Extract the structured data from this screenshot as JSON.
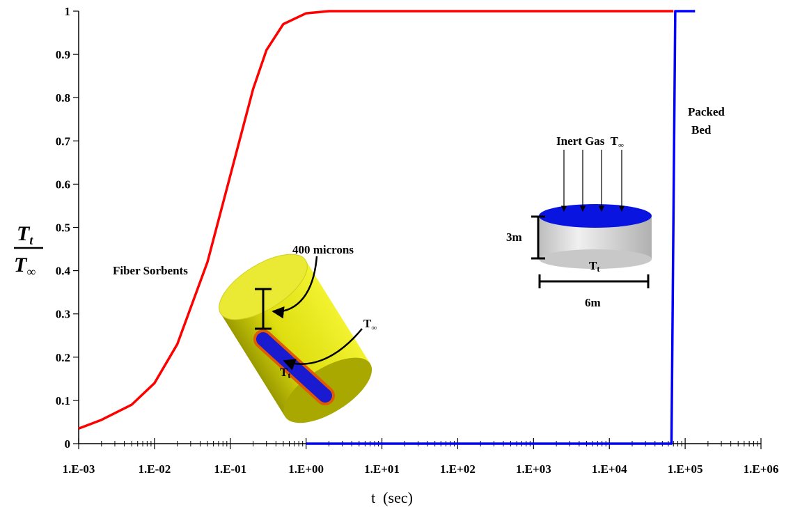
{
  "chart_data": {
    "type": "line",
    "xlabel": "t  (sec)",
    "ylabel": {
      "numerator": {
        "base": "T",
        "sub": "t"
      },
      "denominator": {
        "base": "T",
        "sub": "∞"
      }
    },
    "xscale": "log",
    "xlim": [
      0.001,
      1000000
    ],
    "xticks": [
      {
        "value": 0.001,
        "label": "1.E-03"
      },
      {
        "value": 0.01,
        "label": "1.E-02"
      },
      {
        "value": 0.1,
        "label": "1.E-01"
      },
      {
        "value": 1,
        "label": "1.E+00"
      },
      {
        "value": 10,
        "label": "1.E+01"
      },
      {
        "value": 100,
        "label": "1.E+02"
      },
      {
        "value": 1000,
        "label": "1.E+03"
      },
      {
        "value": 10000,
        "label": "1.E+04"
      },
      {
        "value": 100000,
        "label": "1.E+05"
      },
      {
        "value": 1000000,
        "label": "1.E+06"
      }
    ],
    "ylim": [
      0,
      1
    ],
    "yticks": [
      0,
      0.1,
      0.2,
      0.3,
      0.4,
      0.5,
      0.6,
      0.7,
      0.8,
      0.9,
      1
    ],
    "series": [
      {
        "color": "#ff0000",
        "x": [
          0.001,
          0.002,
          0.005,
          0.01,
          0.02,
          0.05,
          0.1,
          0.2,
          0.3,
          0.5,
          1,
          2,
          10,
          100,
          1000,
          10000,
          70000
        ],
        "values": [
          0.035,
          0.055,
          0.09,
          0.14,
          0.23,
          0.42,
          0.62,
          0.82,
          0.91,
          0.97,
          0.995,
          1,
          1,
          1,
          1,
          1,
          1
        ]
      },
      {
        "color": "#0000ff",
        "x": [
          1,
          66000,
          74000,
          135000
        ],
        "values": [
          0,
          0,
          1,
          1
        ]
      }
    ],
    "annotations": {
      "fiber": "Fiber Sorbents",
      "packed": [
        "Packed",
        "Bed"
      ],
      "microns": "400 microns",
      "fiber_tinf": {
        "base": "T",
        "sub": "∞"
      },
      "fiber_tt": {
        "base": "T",
        "sub": "t"
      },
      "gas": {
        "text": "Inert Gas  T",
        "sub": "∞"
      },
      "bed_height": "3m",
      "bed_width": "6m",
      "bed_tt": {
        "base": "T",
        "sub": "t"
      }
    }
  }
}
